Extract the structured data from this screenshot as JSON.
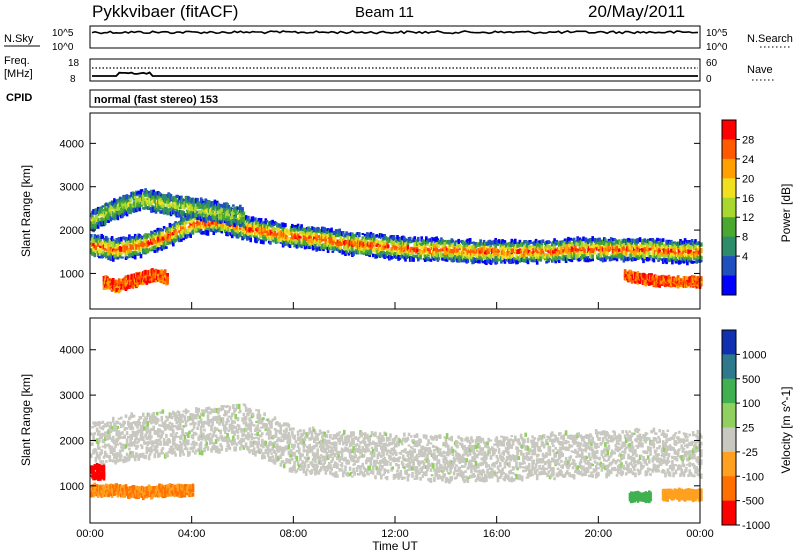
{
  "header": {
    "station": "Pykkvibaer (fitACF)",
    "beam": "Beam 11",
    "date": "20/May/2011"
  },
  "noise_panel": {
    "left_label": "N.Sky",
    "right_label": "N.Search",
    "left_ticks": [
      "10^5",
      "10^0"
    ],
    "right_ticks": [
      "10^5",
      "10^0"
    ]
  },
  "freq_panel": {
    "left_label_1": "Freq.",
    "left_label_2": "[MHz]",
    "right_label": "Nave",
    "left_ticks": [
      "18",
      "8"
    ],
    "right_ticks": [
      "60",
      "0"
    ]
  },
  "cpid": {
    "label": "CPID",
    "text": "normal (fast stereo) 153"
  },
  "chart_data": [
    {
      "type": "heatmap",
      "panel": "power",
      "title": "",
      "xlabel": "",
      "ylabel": "Slant Range [km]",
      "xlim": [
        "00:00",
        "24:00"
      ],
      "ylim": [
        180,
        4700
      ],
      "y_ticks": [
        1000,
        2000,
        3000,
        4000
      ],
      "colorbar_label": "Power [dB]",
      "colorbar_ticks": [
        "28",
        "24",
        "20",
        "16",
        "12",
        "8",
        "4"
      ],
      "colorbar_colors": [
        "#ff0000",
        "#ff5a00",
        "#ffa000",
        "#f0e020",
        "#a8d830",
        "#4aa830",
        "#2e8c6a",
        "#2050c0",
        "#0000ff"
      ],
      "layers": [
        {
          "name": "main-band",
          "x": [
            0,
            1,
            2,
            3,
            4,
            5,
            6,
            7,
            8,
            9,
            10,
            11,
            12,
            13,
            14,
            15,
            16,
            17,
            18,
            19,
            20,
            21,
            22,
            23,
            24
          ],
          "center_km": [
            1650,
            1550,
            1650,
            1850,
            2150,
            2200,
            2050,
            1950,
            1850,
            1800,
            1700,
            1650,
            1600,
            1550,
            1550,
            1500,
            1500,
            1500,
            1500,
            1550,
            1550,
            1550,
            1550,
            1500,
            1500
          ],
          "width_km": 500
        },
        {
          "name": "upper-echoes",
          "x": [
            0,
            1,
            2,
            3,
            4,
            5,
            6
          ],
          "center_km": [
            2200,
            2500,
            2700,
            2600,
            2500,
            2400,
            2300
          ],
          "width_km": 450
        },
        {
          "name": "lower-echoes",
          "x": [
            0.5,
            1,
            1.5,
            2,
            2.5,
            3
          ],
          "center_km": [
            800,
            700,
            800,
            900,
            950,
            900
          ],
          "width_km": 250
        },
        {
          "name": "late-lower",
          "x": [
            21,
            22,
            23,
            24
          ],
          "center_km": [
            950,
            850,
            800,
            800
          ],
          "width_km": 200
        }
      ]
    },
    {
      "type": "heatmap",
      "panel": "velocity",
      "title": "",
      "xlabel": "Time UT",
      "ylabel": "Slant Range [km]",
      "xlim": [
        "00:00",
        "24:00"
      ],
      "ylim": [
        180,
        4700
      ],
      "x_ticks": [
        "00:00",
        "04:00",
        "08:00",
        "12:00",
        "16:00",
        "20:00",
        "00:00"
      ],
      "y_ticks": [
        1000,
        2000,
        3000,
        4000
      ],
      "colorbar_label": "Velocity [m s^-1]",
      "colorbar_ticks": [
        "1000",
        "500",
        "100",
        "25",
        "-25",
        "-100",
        "-500",
        "-1000"
      ],
      "colorbar_colors": [
        "#1030b0",
        "#2e7a8c",
        "#40b050",
        "#90d060",
        "#c8c8c0",
        "#ffa020",
        "#ff7000",
        "#ff0000"
      ],
      "layers": [
        {
          "name": "gray-bulk",
          "x": [
            0,
            2,
            4,
            6,
            8,
            10,
            12,
            14,
            16,
            18,
            20,
            22,
            24
          ],
          "center_km": [
            1900,
            2100,
            2200,
            2300,
            1800,
            1700,
            1650,
            1600,
            1600,
            1650,
            1700,
            1750,
            1700
          ],
          "width_km": 1000
        },
        {
          "name": "red-near",
          "x": [
            0,
            0.5
          ],
          "center_km": [
            1300,
            1300
          ],
          "width_km": 300
        },
        {
          "name": "orange-near",
          "x": [
            0,
            1,
            2,
            3,
            4
          ],
          "center_km": [
            900,
            900,
            850,
            900,
            900
          ],
          "width_km": 220
        },
        {
          "name": "green-late",
          "x": [
            21.2,
            22
          ],
          "center_km": [
            750,
            750
          ],
          "width_km": 180
        },
        {
          "name": "orange-late",
          "x": [
            22.5,
            24
          ],
          "center_km": [
            800,
            800
          ],
          "width_km": 200
        }
      ]
    }
  ]
}
